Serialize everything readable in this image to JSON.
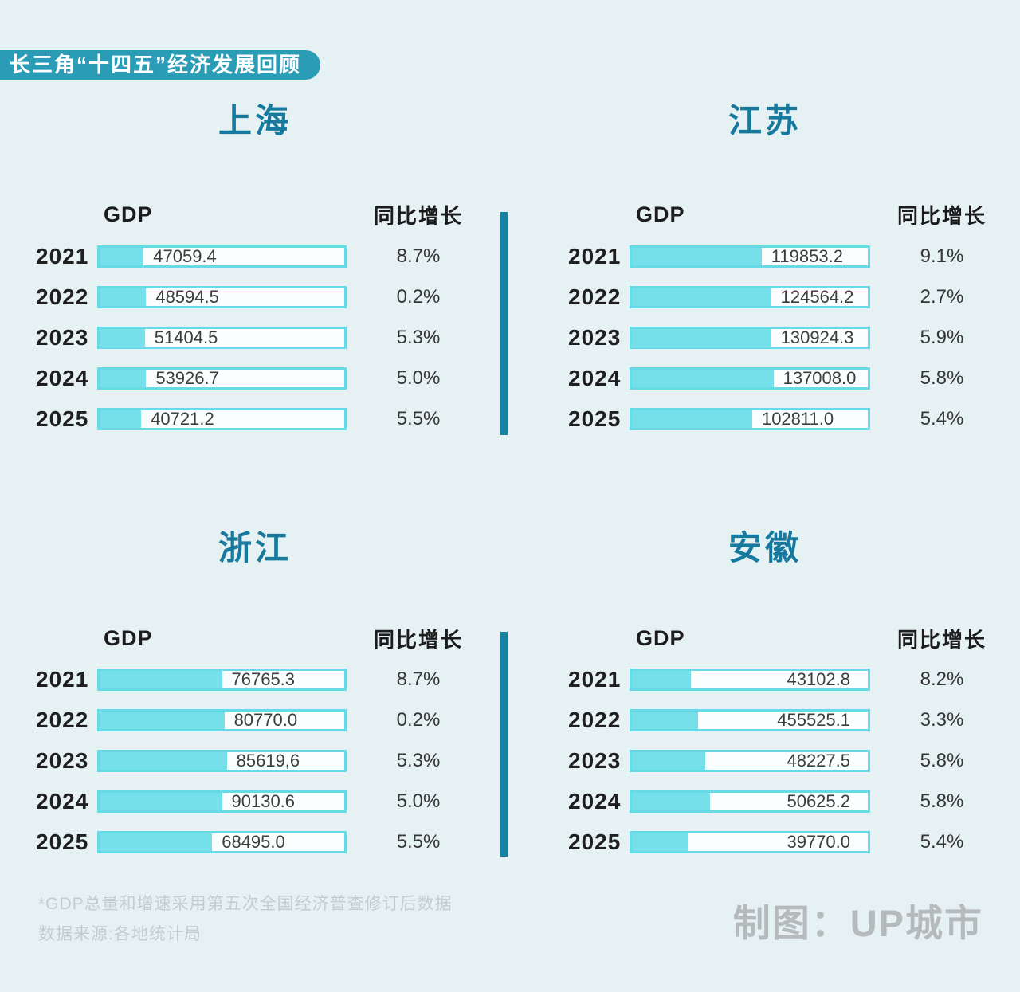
{
  "chart_data": {
    "type": "bar",
    "title": "长三角“十四五”经济发展回顾",
    "years": [
      "2021",
      "2022",
      "2023",
      "2024",
      "2025"
    ],
    "col_headers": {
      "gdp": "GDP",
      "growth": "同比增长"
    },
    "regions": [
      {
        "name": "上海",
        "value_align": "left",
        "rows": [
          {
            "year": "2021",
            "gdp": "47059.4",
            "growth": "8.7%",
            "fill_pct": 18
          },
          {
            "year": "2022",
            "gdp": "48594.5",
            "growth": "0.2%",
            "fill_pct": 19
          },
          {
            "year": "2023",
            "gdp": "51404.5",
            "growth": "5.3%",
            "fill_pct": 18.5
          },
          {
            "year": "2024",
            "gdp": "53926.7",
            "growth": "5.0%",
            "fill_pct": 19
          },
          {
            "year": "2025",
            "gdp": "40721.2",
            "growth": "5.5%",
            "fill_pct": 17
          }
        ]
      },
      {
        "name": "江苏",
        "value_align": "left",
        "rows": [
          {
            "year": "2021",
            "gdp": "119853.2",
            "growth": "9.1%",
            "fill_pct": 55
          },
          {
            "year": "2022",
            "gdp": "124564.2",
            "growth": "2.7%",
            "fill_pct": 59
          },
          {
            "year": "2023",
            "gdp": "130924.3",
            "growth": "5.9%",
            "fill_pct": 59
          },
          {
            "year": "2024",
            "gdp": "137008.0",
            "growth": "5.8%",
            "fill_pct": 60
          },
          {
            "year": "2025",
            "gdp": "102811.0",
            "growth": "5.4%",
            "fill_pct": 51
          }
        ]
      },
      {
        "name": "浙江",
        "value_align": "left",
        "rows": [
          {
            "year": "2021",
            "gdp": "76765.3",
            "growth": "8.7%",
            "fill_pct": 50
          },
          {
            "year": "2022",
            "gdp": "80770.0",
            "growth": "0.2%",
            "fill_pct": 51
          },
          {
            "year": "2023",
            "gdp": "85619,6",
            "growth": "5.3%",
            "fill_pct": 52
          },
          {
            "year": "2024",
            "gdp": "90130.6",
            "growth": "5.0%",
            "fill_pct": 50
          },
          {
            "year": "2025",
            "gdp": "68495.0",
            "growth": "5.5%",
            "fill_pct": 46
          }
        ]
      },
      {
        "name": "安徽",
        "value_align": "right",
        "rows": [
          {
            "year": "2021",
            "gdp": "43102.8",
            "growth": "8.2%",
            "fill_pct": 25
          },
          {
            "year": "2022",
            "gdp": "455525.1",
            "growth": "3.3%",
            "fill_pct": 28
          },
          {
            "year": "2023",
            "gdp": "48227.5",
            "growth": "5.8%",
            "fill_pct": 31
          },
          {
            "year": "2024",
            "gdp": "50625.2",
            "growth": "5.8%",
            "fill_pct": 33
          },
          {
            "year": "2025",
            "gdp": "39770.0",
            "growth": "5.4%",
            "fill_pct": 24
          }
        ]
      }
    ]
  },
  "footer": {
    "note_line1": "*GDP总量和增速采用第五次全国经济普查修订后数据",
    "note_line2": "数据来源:各地统计局",
    "credit": "制图：UP城市"
  },
  "colors": {
    "banner_teal": "#2b9cb6",
    "region_title_teal": "#17799d",
    "divider_teal": "#1a80a2",
    "bar_fill_cyan": "#76e0ea",
    "bar_border_cyan": "#66dbe6",
    "background": "#e5f1f3"
  }
}
